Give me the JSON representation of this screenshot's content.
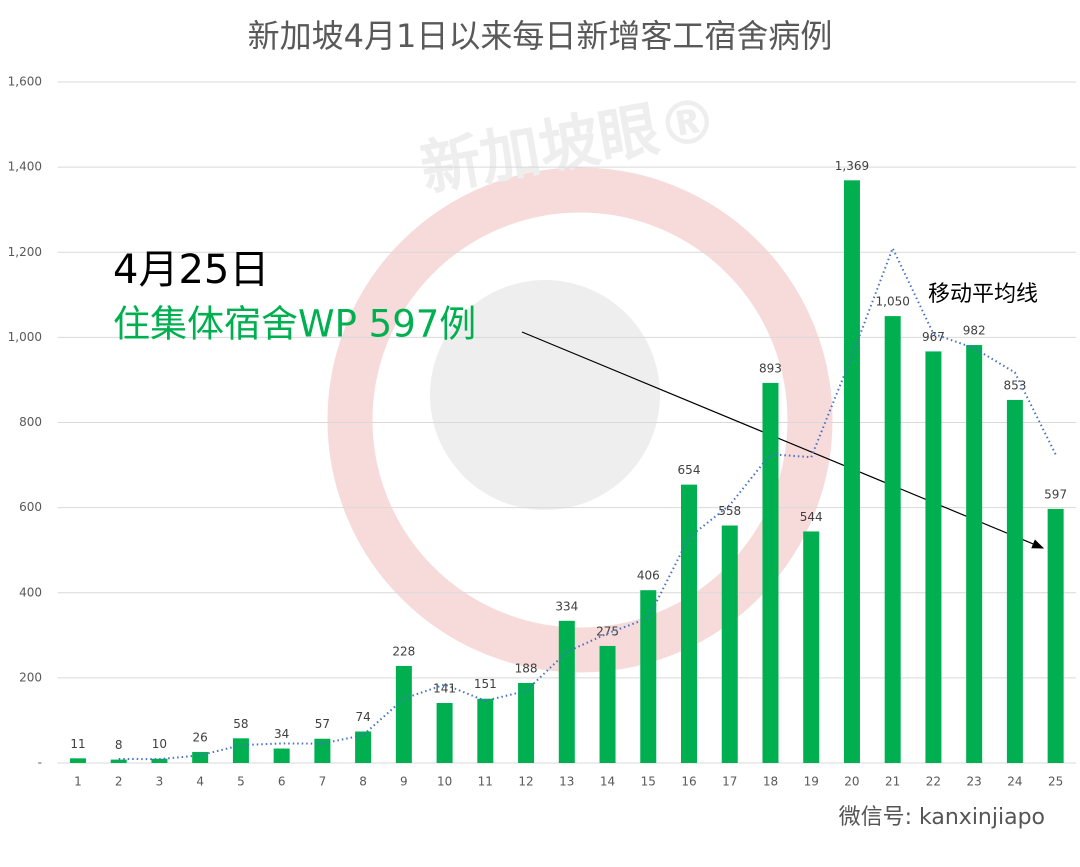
{
  "chart_data": {
    "type": "bar",
    "title": "新加坡4月1日以来每日新增客工宿舍病例",
    "categories": [
      "1",
      "2",
      "3",
      "4",
      "5",
      "6",
      "7",
      "8",
      "9",
      "10",
      "11",
      "12",
      "13",
      "14",
      "15",
      "16",
      "17",
      "18",
      "19",
      "20",
      "21",
      "22",
      "23",
      "24",
      "25"
    ],
    "values": [
      11,
      8,
      10,
      26,
      58,
      34,
      57,
      74,
      228,
      141,
      151,
      188,
      334,
      275,
      406,
      654,
      558,
      893,
      544,
      1369,
      1050,
      967,
      982,
      853,
      597
    ],
    "value_labels": [
      "11",
      "8",
      "10",
      "26",
      "58",
      "34",
      "57",
      "74",
      "228",
      "141",
      "151",
      "188",
      "334",
      "275",
      "406",
      "654",
      "558",
      "893",
      "544",
      "1,369",
      "1,050",
      "967",
      "982",
      "853",
      "597"
    ],
    "color": "#00b050",
    "series": [
      {
        "name": "移动平均线",
        "color": "#4472c4",
        "values": [
          null,
          9.5,
          9,
          18,
          42,
          46,
          45.5,
          65.5,
          151,
          184.5,
          146,
          169.5,
          261,
          304.5,
          340.5,
          530,
          606,
          725.5,
          718.5,
          956.5,
          1209.5,
          1008.5,
          974.5,
          917.5,
          725
        ]
      }
    ],
    "ylim": [
      0,
      1600
    ],
    "yticks": [
      {
        "value": 0,
        "label": "-"
      },
      200,
      400,
      600,
      800,
      {
        "value": 1000,
        "label": "1,000"
      },
      {
        "value": 1200,
        "label": "1,200"
      },
      {
        "value": 1400,
        "label": "1,400"
      },
      {
        "value": 1600,
        "label": "1,600"
      }
    ],
    "grid": true,
    "annotations": [
      "4月25日",
      "住集体宿舍WP 597例"
    ],
    "watermark": "新加坡眼®",
    "source": "微信号: kanxinjiapo"
  }
}
